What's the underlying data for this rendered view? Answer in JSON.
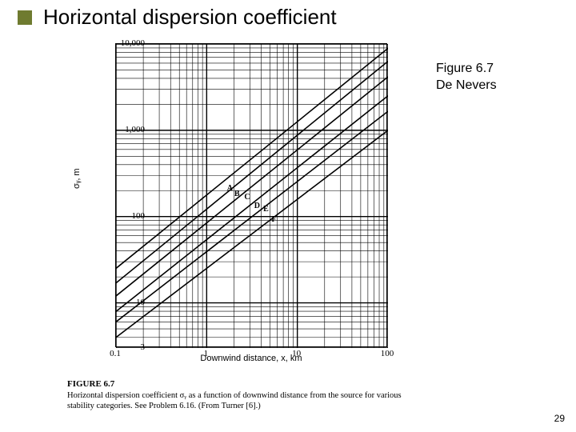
{
  "title": "Horizontal dispersion coefficient",
  "bullet_color": "#6f7b30",
  "fig_ref_line1": "Figure 6.7",
  "fig_ref_line2": "De Nevers",
  "page_number": "29",
  "caption_head": "FIGURE 6.7",
  "caption_body": "Horizontal dispersion coefficient σᵧ as a function of downwind distance from the source for various stability categories. See Problem 6.16. (From Turner [6].)",
  "chart": {
    "type": "line-loglog",
    "background_color": "#ffffff",
    "axis_color": "#000000",
    "grid_color": "#000000",
    "grid_width_major": 1.4,
    "grid_width_minor": 0.6,
    "xlabel": "Downwind distance, x, km",
    "ylabel": "σᵧ, m",
    "label_fontsize": 11,
    "tick_fontsize": 11,
    "x": {
      "min_log10": -1,
      "max_log10": 2,
      "decades": [
        -1,
        0,
        1,
        2
      ],
      "tick_labels": [
        "0.1",
        "1",
        "10",
        "100"
      ]
    },
    "y_decades": [
      0.477,
      1,
      2,
      3,
      4
    ],
    "y_tick_labels": [
      "3",
      "10",
      "100",
      "1,000",
      "10,000"
    ],
    "series_line_color": "#000000",
    "series_line_width": 1.6,
    "series": [
      {
        "name": "A",
        "points": [
          [
            -1,
            1.4
          ],
          [
            2,
            3.95
          ]
        ],
        "label_xy": [
          0.26,
          2.32
        ]
      },
      {
        "name": "B",
        "points": [
          [
            -1,
            1.23
          ],
          [
            2,
            3.8
          ]
        ],
        "label_xy": [
          0.34,
          2.26
        ]
      },
      {
        "name": "C",
        "points": [
          [
            -1,
            1.08
          ],
          [
            2,
            3.62
          ]
        ],
        "label_xy": [
          0.45,
          2.22
        ]
      },
      {
        "name": "D",
        "points": [
          [
            -1,
            0.9
          ],
          [
            2,
            3.4
          ]
        ],
        "label_xy": [
          0.56,
          2.12
        ]
      },
      {
        "name": "E",
        "points": [
          [
            -1,
            0.78
          ],
          [
            2,
            3.22
          ]
        ],
        "label_xy": [
          0.66,
          2.08
        ]
      },
      {
        "name": "F",
        "points": [
          [
            -1,
            0.6
          ],
          [
            2,
            3.0
          ]
        ],
        "label_xy": [
          0.75,
          1.96
        ]
      }
    ]
  }
}
